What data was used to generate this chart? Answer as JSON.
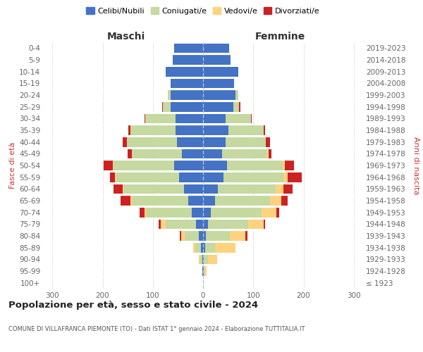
{
  "age_groups": [
    "100+",
    "95-99",
    "90-94",
    "85-89",
    "80-84",
    "75-79",
    "70-74",
    "65-69",
    "60-64",
    "55-59",
    "50-54",
    "45-49",
    "40-44",
    "35-39",
    "30-34",
    "25-29",
    "20-24",
    "15-19",
    "10-14",
    "5-9",
    "0-4"
  ],
  "birth_years": [
    "≤ 1923",
    "1924-1928",
    "1929-1933",
    "1934-1938",
    "1939-1943",
    "1944-1948",
    "1949-1953",
    "1954-1958",
    "1959-1963",
    "1964-1968",
    "1969-1973",
    "1974-1978",
    "1979-1983",
    "1984-1988",
    "1989-1993",
    "1994-1998",
    "1999-2003",
    "2004-2008",
    "2009-2013",
    "2014-2018",
    "2019-2023"
  ],
  "maschi": {
    "celibi": [
      0,
      1,
      2,
      4,
      8,
      14,
      22,
      30,
      38,
      48,
      58,
      42,
      52,
      55,
      55,
      65,
      65,
      65,
      75,
      60,
      58
    ],
    "coniugati": [
      0,
      1,
      4,
      12,
      28,
      60,
      90,
      110,
      120,
      125,
      120,
      100,
      100,
      90,
      60,
      15,
      5,
      0,
      0,
      0,
      0
    ],
    "vedovi": [
      0,
      0,
      2,
      4,
      8,
      10,
      4,
      4,
      2,
      2,
      2,
      0,
      0,
      0,
      0,
      0,
      0,
      0,
      0,
      0,
      0
    ],
    "divorziati": [
      0,
      0,
      0,
      0,
      2,
      4,
      10,
      20,
      18,
      10,
      18,
      8,
      8,
      4,
      2,
      2,
      0,
      0,
      0,
      0,
      0
    ]
  },
  "femmine": {
    "nubili": [
      0,
      1,
      2,
      4,
      6,
      10,
      16,
      24,
      30,
      40,
      48,
      38,
      45,
      50,
      45,
      60,
      65,
      62,
      70,
      55,
      52
    ],
    "coniugate": [
      0,
      2,
      8,
      20,
      48,
      80,
      100,
      110,
      115,
      120,
      110,
      90,
      80,
      70,
      50,
      12,
      5,
      0,
      0,
      0,
      0
    ],
    "vedove": [
      0,
      4,
      18,
      40,
      30,
      30,
      30,
      22,
      15,
      8,
      5,
      2,
      0,
      0,
      0,
      0,
      0,
      0,
      0,
      0,
      0
    ],
    "divorziate": [
      0,
      0,
      0,
      0,
      4,
      4,
      6,
      12,
      18,
      28,
      18,
      6,
      8,
      4,
      2,
      2,
      0,
      0,
      0,
      0,
      0
    ]
  },
  "colors": {
    "celibi": "#4472c4",
    "coniugati": "#c5d9a0",
    "vedovi": "#ffd27f",
    "divorziati": "#cc2222"
  },
  "xlim": 320,
  "title": "Popolazione per età, sesso e stato civile - 2024",
  "subtitle": "COMUNE DI VILLAFRANCA PIEMONTE (TO) - Dati ISTAT 1° gennaio 2024 - Elaborazione TUTTITALIA.IT",
  "ylabel_left": "Fasce di età",
  "ylabel_right": "Anni di nascita",
  "xlabel_left": "Maschi",
  "xlabel_right": "Femmine"
}
